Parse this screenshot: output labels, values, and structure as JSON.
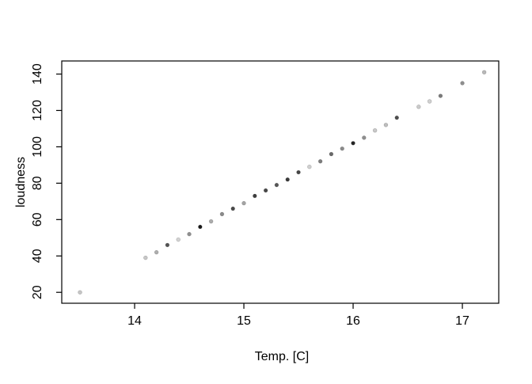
{
  "chart_data": {
    "type": "scatter",
    "title": "",
    "xlabel": "Temp. [C]",
    "ylabel": "loudness",
    "x_ticks": [
      14,
      15,
      16,
      17
    ],
    "y_ticks": [
      20,
      40,
      60,
      80,
      100,
      120,
      140
    ],
    "xlim": [
      13.333,
      17.333
    ],
    "ylim": [
      14.0,
      147.2
    ],
    "grid": false,
    "legend": "none",
    "background_color": "#ffffff",
    "axis_color": "#000000",
    "point_radius": 2.4,
    "points": [
      {
        "x": 13.5,
        "y": 20,
        "color": "#c6c6c6"
      },
      {
        "x": 14.1,
        "y": 39,
        "color": "#c7c7c7"
      },
      {
        "x": 14.2,
        "y": 42,
        "color": "#aeaeae"
      },
      {
        "x": 14.3,
        "y": 46,
        "color": "#525252"
      },
      {
        "x": 14.4,
        "y": 49,
        "color": "#d3d3d3"
      },
      {
        "x": 14.5,
        "y": 52,
        "color": "#909090"
      },
      {
        "x": 14.6,
        "y": 56,
        "color": "#181818"
      },
      {
        "x": 14.7,
        "y": 59,
        "color": "#acacac"
      },
      {
        "x": 14.8,
        "y": 63,
        "color": "#8a8a8a"
      },
      {
        "x": 14.9,
        "y": 66,
        "color": "#4a4a4a"
      },
      {
        "x": 15.0,
        "y": 69,
        "color": "#a4a4a4"
      },
      {
        "x": 15.1,
        "y": 73,
        "color": "#3e3e3e"
      },
      {
        "x": 15.2,
        "y": 76,
        "color": "#474747"
      },
      {
        "x": 15.3,
        "y": 79,
        "color": "#565656"
      },
      {
        "x": 15.4,
        "y": 82,
        "color": "#3a3a3a"
      },
      {
        "x": 15.5,
        "y": 86,
        "color": "#464646"
      },
      {
        "x": 15.6,
        "y": 89,
        "color": "#d0d0d0"
      },
      {
        "x": 15.7,
        "y": 92,
        "color": "#7e7e7e"
      },
      {
        "x": 15.8,
        "y": 96,
        "color": "#686868"
      },
      {
        "x": 15.9,
        "y": 99,
        "color": "#8a8a8a"
      },
      {
        "x": 16.0,
        "y": 102,
        "color": "#242424"
      },
      {
        "x": 16.1,
        "y": 105,
        "color": "#8f8f8f"
      },
      {
        "x": 16.2,
        "y": 109,
        "color": "#c9c9c9"
      },
      {
        "x": 16.3,
        "y": 112,
        "color": "#bebebe"
      },
      {
        "x": 16.4,
        "y": 116,
        "color": "#4e4e4e"
      },
      {
        "x": 16.6,
        "y": 122,
        "color": "#cbcbcb"
      },
      {
        "x": 16.7,
        "y": 125,
        "color": "#d1d1d1"
      },
      {
        "x": 16.8,
        "y": 128,
        "color": "#7a7a7a"
      },
      {
        "x": 17.0,
        "y": 135,
        "color": "#8f8f8f"
      },
      {
        "x": 17.2,
        "y": 141,
        "color": "#b9b9b9"
      }
    ]
  }
}
